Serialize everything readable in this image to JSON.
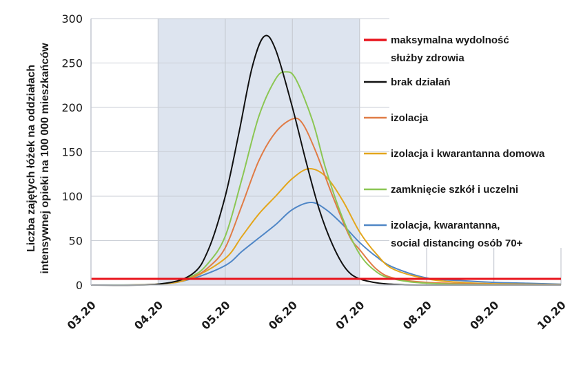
{
  "chart_data": {
    "type": "line",
    "title": "",
    "xlabel": "",
    "ylabel": [
      "Liczba zajętych łóżek na oddziałach",
      "intensywnej opieki na 100 000 mieszkańców"
    ],
    "x_tick_labels": [
      "03.20",
      "04.20",
      "05.20",
      "06.20",
      "07.20",
      "08.20",
      "09.20",
      "10.20"
    ],
    "y_ticks": [
      0,
      50,
      100,
      150,
      200,
      250,
      300
    ],
    "ylim": [
      0,
      300
    ],
    "xlim_month_index": [
      0,
      7
    ],
    "grid": true,
    "legend_position": "right",
    "shaded_period_month_index": [
      1,
      4
    ],
    "colors": {
      "shade": "#dde4ef",
      "grid": "#c8ccd4"
    },
    "series": [
      {
        "name": "maksymalna wydolność służby zdrowia",
        "legend_lines": [
          "maksymalna wydolność",
          "służby zdrowia"
        ],
        "color": "#e8141c",
        "width": 3,
        "points": [
          [
            0,
            7
          ],
          [
            7,
            7
          ]
        ]
      },
      {
        "name": "brak działań",
        "legend_lines": [
          "brak działań"
        ],
        "color": "#111111",
        "width": 2,
        "points": [
          [
            0,
            0
          ],
          [
            1,
            1
          ],
          [
            1.5,
            12
          ],
          [
            1.75,
            40
          ],
          [
            2,
            100
          ],
          [
            2.2,
            170
          ],
          [
            2.4,
            245
          ],
          [
            2.58,
            280
          ],
          [
            2.75,
            265
          ],
          [
            3,
            200
          ],
          [
            3.2,
            140
          ],
          [
            3.4,
            85
          ],
          [
            3.6,
            45
          ],
          [
            3.8,
            18
          ],
          [
            4,
            7
          ],
          [
            4.3,
            2
          ],
          [
            4.6,
            0.5
          ],
          [
            5,
            0
          ],
          [
            7,
            0
          ]
        ]
      },
      {
        "name": "izolacja",
        "legend_lines": [
          "izolacja"
        ],
        "color": "#e07b45",
        "width": 2,
        "points": [
          [
            0,
            0
          ],
          [
            1,
            1
          ],
          [
            1.5,
            9
          ],
          [
            1.75,
            20
          ],
          [
            2,
            42
          ],
          [
            2.25,
            90
          ],
          [
            2.5,
            140
          ],
          [
            2.75,
            172
          ],
          [
            3,
            187
          ],
          [
            3.15,
            182
          ],
          [
            3.35,
            150
          ],
          [
            3.6,
            100
          ],
          [
            3.85,
            55
          ],
          [
            4,
            40
          ],
          [
            4.25,
            18
          ],
          [
            4.5,
            8
          ],
          [
            5,
            3
          ],
          [
            6,
            1
          ],
          [
            7,
            0
          ]
        ]
      },
      {
        "name": "izolacja i kwarantanna domowa",
        "legend_lines": [
          "izolacja i kwarantanna domowa"
        ],
        "color": "#e3a61c",
        "width": 2,
        "points": [
          [
            0,
            0
          ],
          [
            1,
            1
          ],
          [
            1.5,
            8
          ],
          [
            2,
            30
          ],
          [
            2.25,
            55
          ],
          [
            2.5,
            80
          ],
          [
            2.75,
            100
          ],
          [
            3,
            120
          ],
          [
            3.25,
            131
          ],
          [
            3.5,
            122
          ],
          [
            3.75,
            95
          ],
          [
            4,
            60
          ],
          [
            4.25,
            35
          ],
          [
            4.5,
            18
          ],
          [
            5,
            7
          ],
          [
            5.5,
            3
          ],
          [
            6,
            1.5
          ],
          [
            7,
            0.5
          ]
        ]
      },
      {
        "name": "zamknięcie szkół i uczelni",
        "legend_lines": [
          "zamknięcie szkół i uczelni"
        ],
        "color": "#8bc653",
        "width": 2,
        "points": [
          [
            0,
            0
          ],
          [
            1,
            1
          ],
          [
            1.5,
            10
          ],
          [
            1.75,
            25
          ],
          [
            2,
            55
          ],
          [
            2.25,
            120
          ],
          [
            2.5,
            190
          ],
          [
            2.75,
            232
          ],
          [
            2.9,
            240
          ],
          [
            3.05,
            232
          ],
          [
            3.3,
            185
          ],
          [
            3.5,
            130
          ],
          [
            3.75,
            75
          ],
          [
            4,
            35
          ],
          [
            4.25,
            15
          ],
          [
            4.5,
            7
          ],
          [
            5,
            2
          ],
          [
            6,
            0.5
          ],
          [
            7,
            0
          ]
        ]
      },
      {
        "name": "izolacja, kwarantanna, social distancing osób 70+",
        "legend_lines": [
          "izolacja, kwarantanna,",
          "social distancing osób 70+"
        ],
        "color": "#4f86c6",
        "width": 2,
        "points": [
          [
            0,
            0
          ],
          [
            1,
            1
          ],
          [
            1.5,
            7
          ],
          [
            2,
            22
          ],
          [
            2.25,
            38
          ],
          [
            2.5,
            53
          ],
          [
            2.75,
            68
          ],
          [
            3,
            85
          ],
          [
            3.28,
            93
          ],
          [
            3.5,
            85
          ],
          [
            3.75,
            68
          ],
          [
            4,
            48
          ],
          [
            4.25,
            32
          ],
          [
            4.5,
            20
          ],
          [
            5,
            8
          ],
          [
            5.5,
            5
          ],
          [
            6,
            3
          ],
          [
            6.5,
            2
          ],
          [
            7,
            1
          ]
        ]
      }
    ]
  }
}
